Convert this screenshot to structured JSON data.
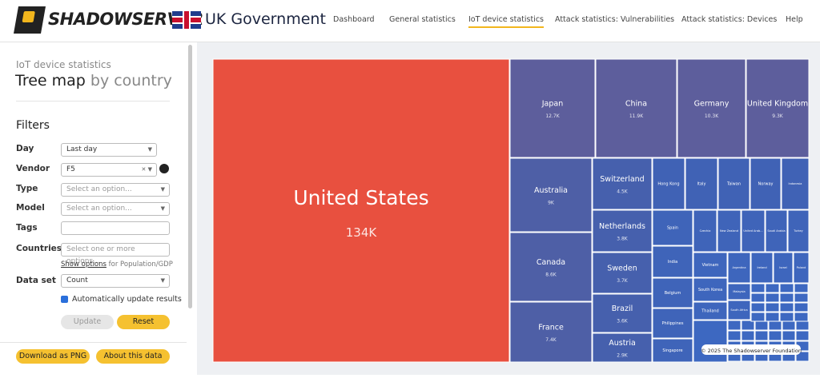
{
  "header": {
    "logo": "SHADOWSERVER",
    "partner": "UK Government",
    "nav": [
      "Dashboard",
      "General statistics",
      "IoT device statistics",
      "Attack statistics: Vulnerabilities",
      "Attack statistics: Devices",
      "Help"
    ]
  },
  "sidebar": {
    "kicker": "IoT device statistics",
    "title": "Tree map",
    "title_suffix": "by country",
    "filters_heading": "Filters",
    "fields": [
      {
        "label": "Day",
        "value": "Last day"
      },
      {
        "label": "Vendor",
        "value": "F5"
      },
      {
        "label": "Type",
        "placeholder": "Select an option..."
      },
      {
        "label": "Model",
        "placeholder": "Select an option..."
      },
      {
        "label": "Tags"
      },
      {
        "label": "Countries",
        "placeholder": "Select one or more options..."
      },
      {
        "label": "Data set",
        "value": "Count"
      }
    ],
    "show_options": "Show options",
    "show_options_suffix": "for Population/GDP",
    "auto_update": "Automatically update results",
    "buttons": [
      "Update",
      "Reset"
    ],
    "footer_buttons": [
      "Download as PNG",
      "About this data"
    ]
  },
  "treemap": {
    "credit": "© 2025 The Shadowserver Foundation",
    "cells": [
      {
        "name": "United States",
        "value": "134K"
      },
      {
        "name": "Japan",
        "value": "12.7K"
      },
      {
        "name": "China",
        "value": "11.9K"
      },
      {
        "name": "Germany",
        "value": "10.3K"
      },
      {
        "name": "United Kingdom",
        "value": "9.3K"
      },
      {
        "name": "Australia",
        "value": "9K"
      },
      {
        "name": "Canada",
        "value": "8.6K"
      },
      {
        "name": "France",
        "value": "7.4K"
      },
      {
        "name": "Switzerland",
        "value": "4.5K"
      },
      {
        "name": "Netherlands",
        "value": "3.8K"
      },
      {
        "name": "Sweden",
        "value": "3.7K"
      },
      {
        "name": "Brazil",
        "value": "3.6K"
      },
      {
        "name": "Austria",
        "value": "2.9K"
      },
      {
        "name": "Hong Kong"
      },
      {
        "name": "Italy"
      },
      {
        "name": "Taiwan"
      },
      {
        "name": "Norway"
      },
      {
        "name": "Indonesia"
      },
      {
        "name": "Spain"
      },
      {
        "name": "Czechia"
      },
      {
        "name": "New Zealand"
      },
      {
        "name": "United Arab..."
      },
      {
        "name": "Saudi Arabia"
      },
      {
        "name": "Turkey"
      },
      {
        "name": "India"
      },
      {
        "name": "Belgium"
      },
      {
        "name": "Philippines"
      },
      {
        "name": "Singapore"
      },
      {
        "name": "Vietnam"
      },
      {
        "name": "Argentina"
      },
      {
        "name": "Ireland"
      },
      {
        "name": "Israel"
      },
      {
        "name": "Poland"
      },
      {
        "name": "South Korea"
      },
      {
        "name": "Thailand"
      },
      {
        "name": "Malaysia"
      },
      {
        "name": "South Africa"
      }
    ]
  }
}
